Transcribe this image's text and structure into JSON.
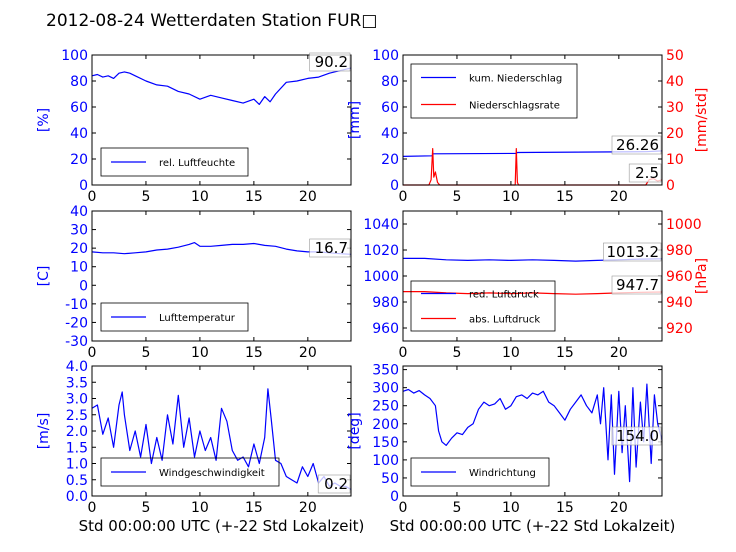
{
  "page_title": "2012-08-24 Wetterdaten Station FUR□",
  "chart_data": [
    {
      "id": "humidity",
      "type": "line",
      "xlim": [
        0,
        24
      ],
      "x_ticks": [
        0,
        5,
        10,
        15,
        20
      ],
      "ylim": [
        0,
        100
      ],
      "y_ticks": [
        0,
        20,
        40,
        60,
        80,
        100
      ],
      "ylabel": "[%]",
      "legend": {
        "placement": "bottom-left",
        "entries": [
          "rel. Luftfeuchte"
        ]
      },
      "annotation": "90.2",
      "series": [
        {
          "name": "rel. Luftfeuchte",
          "color": "#0000ff",
          "x": [
            0,
            0.5,
            1,
            1.5,
            2,
            2.5,
            3,
            3.5,
            4,
            5,
            6,
            7,
            8,
            9,
            10,
            11,
            12,
            13,
            14,
            15,
            15.5,
            16,
            16.5,
            17,
            18,
            19,
            20,
            21,
            22,
            23,
            24
          ],
          "y": [
            84,
            85,
            83,
            84,
            82,
            86,
            87,
            86,
            84,
            80,
            77,
            76,
            72,
            70,
            66,
            69,
            67,
            65,
            63,
            66,
            62,
            68,
            64,
            70,
            79,
            80,
            82,
            83,
            86,
            88,
            90
          ]
        }
      ]
    },
    {
      "id": "precip",
      "type": "line",
      "xlim": [
        0,
        24
      ],
      "x_ticks": [
        0,
        5,
        10,
        15,
        20
      ],
      "ylim": [
        0,
        100
      ],
      "y_ticks": [
        0,
        20,
        40,
        60,
        80,
        100
      ],
      "ylabel": "[mm]",
      "y2lim": [
        0,
        50
      ],
      "y2_ticks": [
        0,
        10,
        20,
        30,
        40,
        50
      ],
      "y2label": "[mm/std]",
      "legend": {
        "placement": "top-left",
        "entries": [
          "kum. Niederschlag",
          "Niederschlagsrate"
        ]
      },
      "annotations": [
        "26.26",
        "2.5"
      ],
      "series": [
        {
          "name": "kum. Niederschlag",
          "color": "#0000ff",
          "axis": "left",
          "x": [
            0,
            2.7,
            2.8,
            10.5,
            10.6,
            22.5,
            24
          ],
          "y": [
            22,
            22.5,
            24,
            24.3,
            25,
            25.6,
            26.26
          ]
        },
        {
          "name": "Niederschlagsrate",
          "color": "#ff0000",
          "axis": "right",
          "x": [
            0,
            2.4,
            2.6,
            2.75,
            2.85,
            3.0,
            3.2,
            3.4,
            10.4,
            10.5,
            10.6,
            10.7,
            22.5,
            22.8,
            23.2,
            23.6,
            24
          ],
          "y": [
            0,
            0,
            2,
            14,
            3,
            5,
            1,
            0,
            0,
            14,
            1,
            0,
            0,
            2,
            2.5,
            1.5,
            2
          ]
        }
      ]
    },
    {
      "id": "temperature",
      "type": "line",
      "xlim": [
        0,
        24
      ],
      "x_ticks": [
        0,
        5,
        10,
        15,
        20
      ],
      "ylim": [
        -30,
        40
      ],
      "y_ticks": [
        -30,
        -20,
        -10,
        0,
        10,
        20,
        30,
        40
      ],
      "ylabel": "[C]",
      "legend": {
        "placement": "bottom-left",
        "entries": [
          "Lufttemperatur"
        ]
      },
      "annotation": "16.7",
      "series": [
        {
          "name": "Lufttemperatur",
          "color": "#0000ff",
          "x": [
            0,
            1,
            2,
            3,
            4,
            5,
            6,
            7,
            8,
            9,
            9.5,
            10,
            11,
            12,
            13,
            14,
            15,
            16,
            17,
            18,
            19,
            20,
            21,
            22,
            23,
            24
          ],
          "y": [
            18,
            17.5,
            17.5,
            17,
            17.5,
            18,
            19,
            19.5,
            20.5,
            22,
            23,
            21,
            21,
            21.5,
            22,
            22,
            22.5,
            21.5,
            21,
            19.5,
            18.5,
            18,
            18,
            17.5,
            17,
            16.7
          ]
        }
      ]
    },
    {
      "id": "pressure",
      "type": "line",
      "xlim": [
        0,
        24
      ],
      "x_ticks": [
        0,
        5,
        10,
        15,
        20
      ],
      "ylim": [
        950,
        1050
      ],
      "y_ticks": [
        960,
        980,
        1000,
        1020,
        1040
      ],
      "y2lim": [
        910,
        1010
      ],
      "y2_ticks": [
        920,
        940,
        960,
        980,
        1000
      ],
      "y2label": "[hPa]",
      "legend": {
        "placement": "bottom-left",
        "entries": [
          "red. Luftdruck",
          "abs. Luftdruck"
        ]
      },
      "annotations": [
        "1013.2",
        "947.7"
      ],
      "series": [
        {
          "name": "red. Luftdruck",
          "color": "#0000ff",
          "axis": "left",
          "x": [
            0,
            2,
            4,
            6,
            8,
            10,
            12,
            14,
            16,
            18,
            20,
            22,
            24
          ],
          "y": [
            1013.5,
            1013.5,
            1012.5,
            1012,
            1012.5,
            1012,
            1012.5,
            1012,
            1011.5,
            1012,
            1012.5,
            1013,
            1013.2
          ]
        },
        {
          "name": "abs. Luftdruck",
          "color": "#ff0000",
          "axis": "right",
          "x": [
            0,
            2,
            4,
            6,
            8,
            10,
            12,
            14,
            16,
            18,
            20,
            22,
            24
          ],
          "y": [
            948,
            948,
            947,
            946.5,
            947,
            946.5,
            947,
            946.5,
            946,
            946.5,
            947,
            947.5,
            947.7
          ]
        }
      ]
    },
    {
      "id": "wind-speed",
      "type": "line",
      "xlim": [
        0,
        24
      ],
      "x_ticks": [
        0,
        5,
        10,
        15,
        20
      ],
      "xlabel": "Std 00:00:00 UTC (+-22 Std Lokalzeit)",
      "ylim": [
        0,
        4
      ],
      "y_ticks": [
        0.0,
        0.5,
        1.0,
        1.5,
        2.0,
        2.5,
        3.0,
        3.5,
        4.0
      ],
      "ylabel": "[m/s]",
      "legend": {
        "placement": "bottom-left",
        "entries": [
          "Windgeschwindigkeit"
        ]
      },
      "annotation": "0.2",
      "series": [
        {
          "name": "Windgeschwindigkeit",
          "color": "#0000ff",
          "x": [
            0,
            0.5,
            1,
            1.5,
            2,
            2.5,
            2.8,
            3,
            3.5,
            4,
            4.5,
            5,
            5.5,
            6,
            6.5,
            7,
            7.5,
            8,
            8.5,
            9,
            9.5,
            10,
            10.5,
            11,
            11.5,
            12,
            12.5,
            13,
            13.5,
            14,
            14.5,
            15,
            15.5,
            16,
            16.3,
            16.6,
            17,
            17.5,
            18,
            18.5,
            19,
            19.5,
            20,
            20.5,
            21,
            21.5,
            22,
            22.5,
            23,
            23.5,
            24
          ],
          "y": [
            2.7,
            2.8,
            1.9,
            2.4,
            1.5,
            2.8,
            3.2,
            2.5,
            1.4,
            2.0,
            1.2,
            2.2,
            1.0,
            1.8,
            1.1,
            2.5,
            1.6,
            3.1,
            1.5,
            2.4,
            1.2,
            2.0,
            1.4,
            1.8,
            1.1,
            2.7,
            2.3,
            1.4,
            1.1,
            1.2,
            0.9,
            1.6,
            1.0,
            1.8,
            3.3,
            2.4,
            1.1,
            1.0,
            0.6,
            0.5,
            0.4,
            0.9,
            0.6,
            1.0,
            0.4,
            0.6,
            0.3,
            0.4,
            0.3,
            0.3,
            0.2
          ]
        }
      ]
    },
    {
      "id": "wind-direction",
      "type": "line",
      "xlim": [
        0,
        24
      ],
      "x_ticks": [
        0,
        5,
        10,
        15,
        20
      ],
      "xlabel": "Std 00:00:00 UTC (+-22 Std Lokalzeit)",
      "ylim": [
        0,
        360
      ],
      "y_ticks": [
        0,
        50,
        100,
        150,
        200,
        250,
        300,
        350
      ],
      "ylabel": "[deg]",
      "legend": {
        "placement": "bottom-left",
        "entries": [
          "Windrichtung"
        ]
      },
      "annotation": "154.0",
      "series": [
        {
          "name": "Windrichtung",
          "color": "#0000ff",
          "x": [
            0,
            0.5,
            1,
            1.5,
            2,
            2.5,
            3,
            3.3,
            3.6,
            4,
            4.5,
            5,
            5.5,
            6,
            6.5,
            7,
            7.5,
            8,
            8.5,
            9,
            9.5,
            10,
            10.5,
            11,
            11.5,
            12,
            12.5,
            13,
            13.5,
            14,
            14.5,
            15,
            15.5,
            16,
            16.5,
            17,
            17.5,
            18,
            18.3,
            18.6,
            19,
            19.3,
            19.6,
            20,
            20.3,
            20.6,
            21,
            21.3,
            21.6,
            22,
            22.3,
            22.6,
            23,
            23.3,
            23.6,
            24
          ],
          "y": [
            290,
            295,
            285,
            292,
            280,
            270,
            250,
            180,
            150,
            140,
            160,
            175,
            170,
            190,
            200,
            240,
            260,
            250,
            255,
            270,
            240,
            250,
            275,
            280,
            270,
            285,
            280,
            290,
            260,
            250,
            230,
            210,
            240,
            260,
            280,
            250,
            230,
            280,
            200,
            300,
            100,
            280,
            60,
            290,
            120,
            250,
            40,
            300,
            80,
            260,
            150,
            310,
            90,
            280,
            200,
            154
          ]
        }
      ]
    }
  ]
}
